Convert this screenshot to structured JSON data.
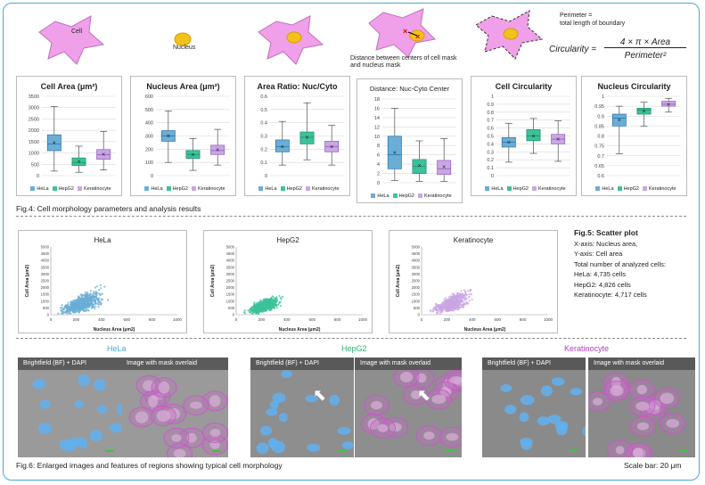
{
  "top": {
    "cell_label": "Cell",
    "nucleus_label": "Nucleus",
    "distance_caption": "Distance between centers of cell mask and nucleus mask",
    "perimeter_caption_1": "Perimeter =",
    "perimeter_caption_2": "total length of boundary",
    "formula_lhs": "Circularity =",
    "formula_num": "4 × π × Area",
    "formula_den": "Perimeter²"
  },
  "legend": [
    "HeLa",
    "HepG2",
    "Keratinocyte"
  ],
  "colors": {
    "hela": "#6aaed6",
    "hepg2": "#3cc29a",
    "kera": "#c9a6e4",
    "frame": "#4aa8d8"
  },
  "fig4_caption": "Fig.4: Cell morphology parameters and analysis results",
  "fig5": {
    "title": "Fig.5: Scatter plot",
    "lines": [
      "X-axis: Nucleus area,",
      "Y-axis: Cell area",
      "Total number of analyzed cells:",
      "HeLa: 4,735 cells",
      "HepG2: 4,826 cells",
      "Keratinocyte: 4,717 cells"
    ]
  },
  "fig6": {
    "hela": "HeLa",
    "hepg2": "HepG2",
    "kera": "Keratinocyte",
    "bf_label": "Brightfield (BF) + DAPI",
    "mask_label": "Image with mask overlaid",
    "caption": "Fig.6: Enlarged images and features of regions showing typical cell morphology",
    "scale": "Scale bar: 20 μm"
  },
  "chart_data": [
    {
      "type": "box",
      "title": "Cell Area (μm²)",
      "yticks": [
        "3500",
        "3000",
        "2500",
        "2000",
        "1500",
        "1000",
        "500",
        "0"
      ],
      "ylim": [
        0,
        3500
      ],
      "series": [
        {
          "name": "HeLa",
          "min": 200,
          "q1": 1100,
          "median": 1400,
          "q3": 1800,
          "max": 3050,
          "mean": 1450
        },
        {
          "name": "HepG2",
          "min": 150,
          "q1": 450,
          "median": 580,
          "q3": 780,
          "max": 1300,
          "mean": 620
        },
        {
          "name": "Keratinocyte",
          "min": 250,
          "q1": 720,
          "median": 930,
          "q3": 1150,
          "max": 1950,
          "mean": 950
        }
      ]
    },
    {
      "type": "box",
      "title": "Nucleus Area (μm²)",
      "yticks": [
        "600",
        "500",
        "400",
        "300",
        "200",
        "100",
        "0"
      ],
      "ylim": [
        0,
        600
      ],
      "series": [
        {
          "name": "HeLa",
          "min": 100,
          "q1": 260,
          "median": 300,
          "q3": 340,
          "max": 490,
          "mean": 300
        },
        {
          "name": "HepG2",
          "min": 40,
          "q1": 130,
          "median": 160,
          "q3": 190,
          "max": 280,
          "mean": 160
        },
        {
          "name": "Keratinocyte",
          "min": 80,
          "q1": 160,
          "median": 190,
          "q3": 230,
          "max": 350,
          "mean": 195
        }
      ]
    },
    {
      "type": "box",
      "title": "Area Ratio: Nuc/Cyto",
      "yticks": [
        "0.6",
        "0.5",
        "0.4",
        "0.3",
        "0.2",
        "0.1",
        "0"
      ],
      "ylim": [
        0,
        0.6
      ],
      "series": [
        {
          "name": "HeLa",
          "min": 0.08,
          "q1": 0.18,
          "median": 0.22,
          "q3": 0.27,
          "max": 0.41,
          "mean": 0.22
        },
        {
          "name": "HepG2",
          "min": 0.12,
          "q1": 0.24,
          "median": 0.29,
          "q3": 0.33,
          "max": 0.55,
          "mean": 0.29
        },
        {
          "name": "Keratinocyte",
          "min": 0.08,
          "q1": 0.18,
          "median": 0.22,
          "q3": 0.26,
          "max": 0.38,
          "mean": 0.22
        }
      ]
    },
    {
      "type": "box",
      "title": "Distance: Nuc-Cyto Center",
      "yticks": [
        "18",
        "16",
        "14",
        "12",
        "10",
        "8",
        "6",
        "4",
        "2",
        "0"
      ],
      "ylim": [
        0,
        18
      ],
      "series": [
        {
          "name": "HeLa",
          "min": 0.5,
          "q1": 3,
          "median": 6,
          "q3": 10,
          "max": 16,
          "mean": 6.5
        },
        {
          "name": "HepG2",
          "min": 0.3,
          "q1": 2,
          "median": 3.5,
          "q3": 5,
          "max": 9,
          "mean": 3.7
        },
        {
          "name": "Keratinocyte",
          "min": 0.3,
          "q1": 1.8,
          "median": 3,
          "q3": 4.8,
          "max": 9.5,
          "mean": 3.4
        }
      ]
    },
    {
      "type": "box",
      "title": "Cell Circularity",
      "yticks": [
        "1",
        "0.9",
        "0.8",
        "0.7",
        "0.6",
        "0.5",
        "0.4",
        "0.3",
        "0.2",
        "0.1",
        "0"
      ],
      "ylim": [
        0,
        1
      ],
      "series": [
        {
          "name": "HeLa",
          "min": 0.17,
          "q1": 0.36,
          "median": 0.42,
          "q3": 0.48,
          "max": 0.66,
          "mean": 0.42
        },
        {
          "name": "HepG2",
          "min": 0.28,
          "q1": 0.44,
          "median": 0.5,
          "q3": 0.58,
          "max": 0.72,
          "mean": 0.5
        },
        {
          "name": "Keratinocyte",
          "min": 0.18,
          "q1": 0.4,
          "median": 0.46,
          "q3": 0.52,
          "max": 0.69,
          "mean": 0.46
        }
      ]
    },
    {
      "type": "box",
      "title": "Nucleus Circularity",
      "yticks": [
        "1",
        "0.95",
        "0.9",
        "0.85",
        "0.8",
        "0.75",
        "0.7",
        "0.65",
        "0.6"
      ],
      "ylim": [
        0.6,
        1
      ],
      "series": [
        {
          "name": "HeLa",
          "min": 0.71,
          "q1": 0.85,
          "median": 0.89,
          "q3": 0.91,
          "max": 0.95,
          "mean": 0.88
        },
        {
          "name": "HepG2",
          "min": 0.85,
          "q1": 0.91,
          "median": 0.93,
          "q3": 0.94,
          "max": 0.97,
          "mean": 0.925
        },
        {
          "name": "Keratinocyte",
          "min": 0.92,
          "q1": 0.95,
          "median": 0.96,
          "q3": 0.975,
          "max": 0.99,
          "mean": 0.96
        }
      ]
    },
    {
      "type": "scatter",
      "title": "HeLa",
      "xlabel": "Nucleus Area (μm2)",
      "ylabel": "Cell Area (μm2)",
      "xlim": [
        0,
        1000
      ],
      "ylim": [
        0,
        5000
      ],
      "xticks": [
        "0",
        "200",
        "400",
        "600",
        "800",
        "1000"
      ],
      "yticks": [
        "5000",
        "4500",
        "4000",
        "3500",
        "3000",
        "2500",
        "2000",
        "1500",
        "1000",
        "500",
        "0"
      ],
      "n": 4735
    },
    {
      "type": "scatter",
      "title": "HepG2",
      "xlabel": "Nucleus Area (μm2)",
      "ylabel": "Cell Area (μm2)",
      "xlim": [
        0,
        1000
      ],
      "ylim": [
        0,
        5000
      ],
      "xticks": [
        "0",
        "200",
        "400",
        "600",
        "800",
        "1000"
      ],
      "yticks": [
        "5000",
        "4500",
        "4000",
        "3500",
        "3000",
        "2500",
        "2000",
        "1500",
        "1000",
        "500",
        "0"
      ],
      "n": 4826
    },
    {
      "type": "scatter",
      "title": "Keratinocyte",
      "xlabel": "Nucleus Area (μm2)",
      "ylabel": "Cell Area (μm2)",
      "xlim": [
        0,
        1000
      ],
      "ylim": [
        0,
        5000
      ],
      "xticks": [
        "0",
        "200",
        "400",
        "600",
        "800",
        "1000"
      ],
      "yticks": [
        "5000",
        "4500",
        "4000",
        "3500",
        "3000",
        "2500",
        "2000",
        "1500",
        "1000",
        "500",
        "0"
      ],
      "n": 4717
    }
  ]
}
